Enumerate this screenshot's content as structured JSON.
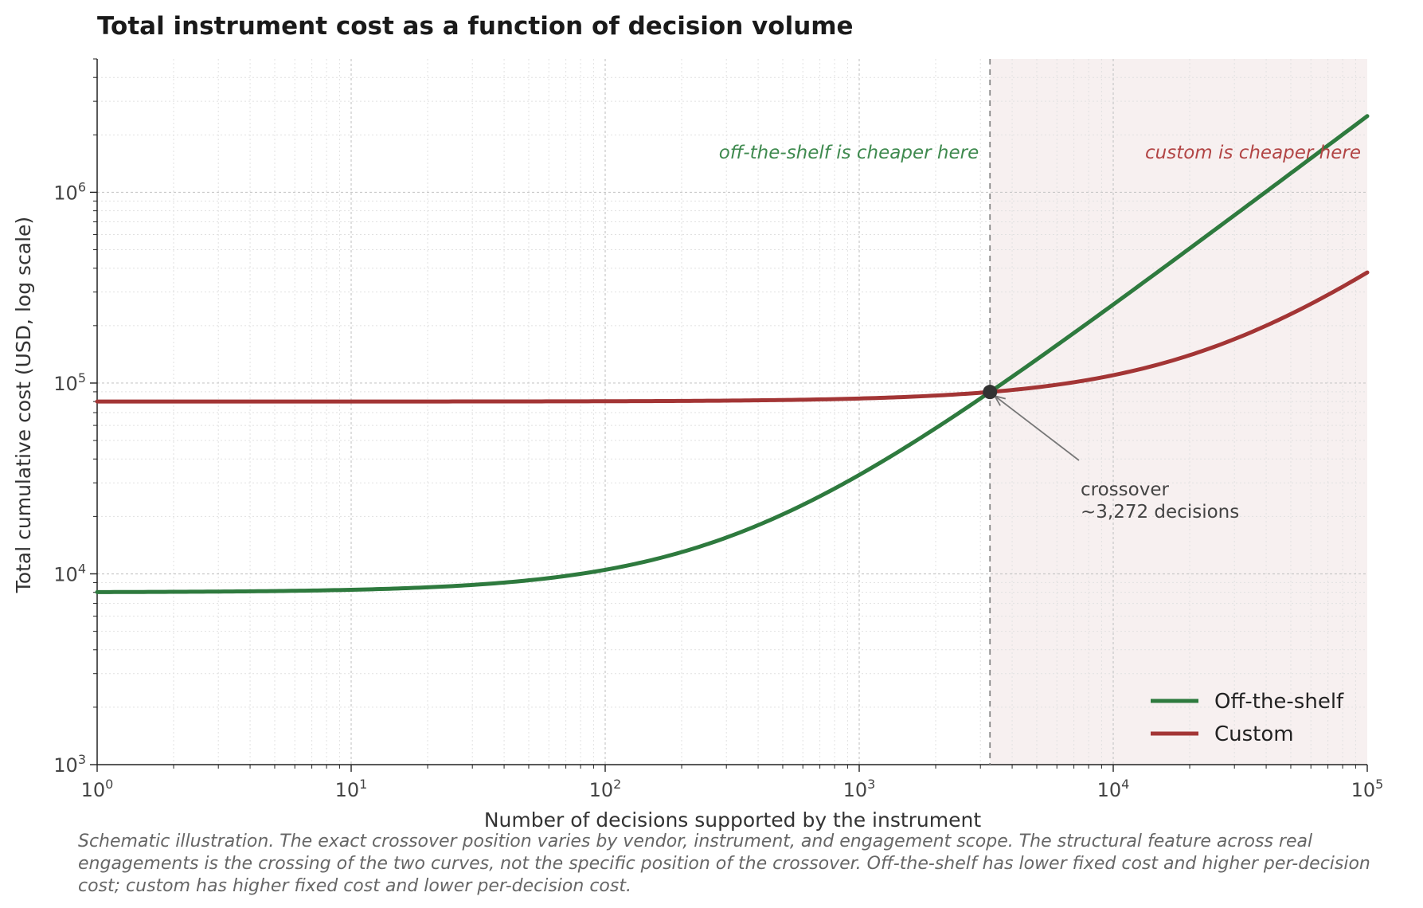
{
  "chart_data": {
    "type": "line",
    "title": "Total instrument cost as a function of decision volume",
    "xlabel": "Number of decisions supported by the instrument",
    "ylabel": "Total cumulative cost (USD, log scale)",
    "x_scale": "log",
    "y_scale": "log",
    "xlim": [
      1,
      100000
    ],
    "ylim": [
      1000,
      5000000
    ],
    "x_ticks": [
      {
        "base": "10",
        "exp": "0",
        "value": 1
      },
      {
        "base": "10",
        "exp": "1",
        "value": 10
      },
      {
        "base": "10",
        "exp": "2",
        "value": 100
      },
      {
        "base": "10",
        "exp": "3",
        "value": 1000
      },
      {
        "base": "10",
        "exp": "4",
        "value": 10000
      },
      {
        "base": "10",
        "exp": "5",
        "value": 100000
      }
    ],
    "y_ticks": [
      {
        "base": "10",
        "exp": "3",
        "value": 1000
      },
      {
        "base": "10",
        "exp": "4",
        "value": 10000
      },
      {
        "base": "10",
        "exp": "5",
        "value": 100000
      },
      {
        "base": "10",
        "exp": "6",
        "value": 1000000
      }
    ],
    "grid": true,
    "legend_position": "bottom-right",
    "series": [
      {
        "name": "Off-the-shelf",
        "color": "#2e7a3e",
        "fixed_cost": 8000,
        "per_decision_cost": 25,
        "x": [
          1,
          10,
          30,
          100,
          300,
          1000,
          3272,
          10000,
          30000,
          100000
        ],
        "y": [
          8025,
          8250,
          8750,
          10500,
          15500,
          33000,
          89800,
          258000,
          758000,
          2508000
        ]
      },
      {
        "name": "Custom",
        "color": "#a33535",
        "fixed_cost": 80000,
        "per_decision_cost": 3,
        "x": [
          1,
          10,
          30,
          100,
          300,
          1000,
          3272,
          10000,
          30000,
          100000
        ],
        "y": [
          80003,
          80030,
          80090,
          80300,
          80900,
          83000,
          89800,
          110000,
          170000,
          380000
        ]
      }
    ],
    "crossover": {
      "x": 3272,
      "y": 89800,
      "label_line1": "crossover",
      "label_line2": "~3,272 decisions"
    },
    "regions": {
      "left_label": "off-the-shelf is cheaper here",
      "left_color": "#3f8a4f",
      "right_label": "custom is cheaper here",
      "right_color": "#b24545",
      "shade_color": "#f7f0f0"
    }
  },
  "caption": "Schematic illustration. The exact crossover position varies by vendor, instrument, and engagement scope. The structural feature across real engagements is the crossing of the two curves, not the specific position of the crossover. Off-the-shelf has lower fixed cost and higher per-decision cost; custom has higher fixed cost and lower per-decision cost."
}
